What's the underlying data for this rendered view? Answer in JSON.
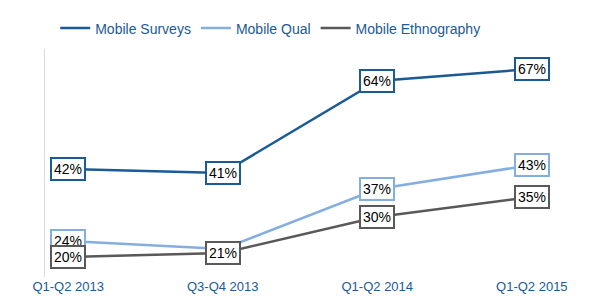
{
  "chart_data": {
    "type": "line",
    "categories": [
      "Q1-Q2 2013",
      "Q3-Q4 2013",
      "Q1-Q2 2014",
      "Q1-Q2 2015"
    ],
    "series": [
      {
        "name": "Mobile Surveys",
        "color": "#1a5a96",
        "values": [
          42,
          41,
          64,
          67
        ],
        "value_labels": [
          "42%",
          "41%",
          "64%",
          "67%"
        ]
      },
      {
        "name": "Mobile Qual",
        "color": "#84aee0",
        "values": [
          24,
          22,
          37,
          43
        ],
        "value_labels": [
          "24%",
          null,
          "37%",
          "43%"
        ]
      },
      {
        "name": "Mobile Ethnography",
        "color": "#595959",
        "values": [
          20,
          21,
          30,
          35
        ],
        "value_labels": [
          "20%",
          "21%",
          "30%",
          "35%"
        ]
      }
    ],
    "ylim": [
      15,
      72
    ],
    "grid": false,
    "legend": "top",
    "data_labels": true,
    "tick_labels": "x"
  }
}
